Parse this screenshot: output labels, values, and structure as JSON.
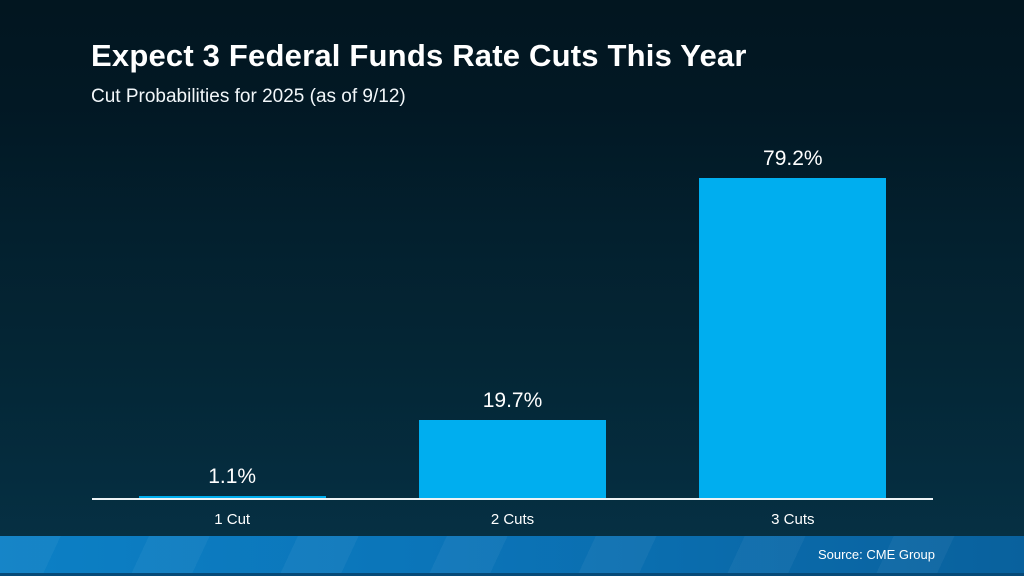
{
  "header": {
    "title": "Expect 3 Federal Funds Rate Cuts This Year",
    "subtitle": "Cut Probabilities for 2025 (as of 9/12)"
  },
  "chart_data": {
    "type": "bar",
    "title": "Expect 3 Federal Funds Rate Cuts This Year",
    "subtitle": "Cut Probabilities for 2025 (as of 9/12)",
    "categories": [
      "1 Cut",
      "2 Cuts",
      "3 Cuts"
    ],
    "values": [
      1.1,
      19.7,
      79.2
    ],
    "value_labels": [
      "1.1%",
      "19.7%",
      "79.2%"
    ],
    "xlabel": "",
    "ylabel": "",
    "ylim": [
      0,
      100
    ],
    "grid": false,
    "legend": false,
    "bar_color": "#00aeef",
    "axis_line_color": "#eef3f6"
  },
  "footer": {
    "source": "Source: CME Group"
  },
  "colors": {
    "background_top": "#021620",
    "background_bottom": "#063246",
    "bar": "#00aeef",
    "footer_left": "#0c80c5",
    "footer_right": "#09619d",
    "text": "#ffffff"
  }
}
